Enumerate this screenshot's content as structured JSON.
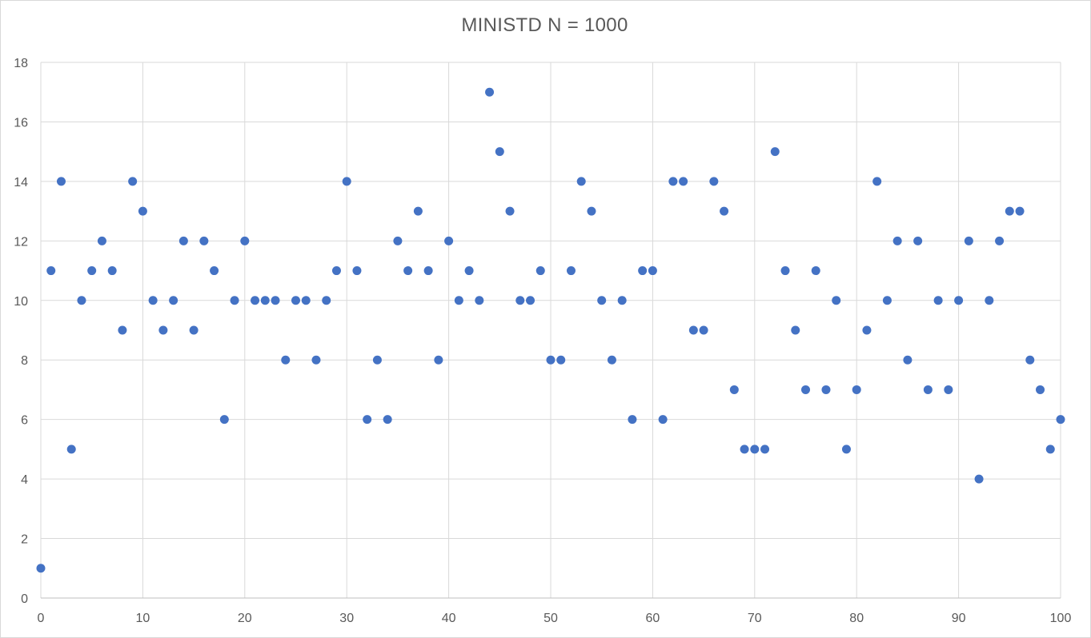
{
  "chart_data": {
    "type": "scatter",
    "title": "MINISTD N = 1000",
    "xlabel": "",
    "ylabel": "",
    "xlim": [
      0,
      100
    ],
    "ylim": [
      0,
      18
    ],
    "x_ticks": [
      0,
      10,
      20,
      30,
      40,
      50,
      60,
      70,
      80,
      90,
      100
    ],
    "y_ticks": [
      0,
      2,
      4,
      6,
      8,
      10,
      12,
      14,
      16,
      18
    ],
    "grid": true,
    "legend": "none",
    "marker_color": "#4472C4",
    "series": [
      {
        "x": [
          0,
          1,
          2,
          3,
          4,
          5,
          6,
          7,
          8,
          9,
          10,
          11,
          12,
          13,
          14,
          15,
          16,
          17,
          18,
          19,
          20,
          21,
          22,
          23,
          24,
          25,
          26,
          27,
          28,
          29,
          30,
          31,
          32,
          33,
          34,
          35,
          36,
          37,
          38,
          39,
          40,
          41,
          42,
          43,
          44,
          45,
          46,
          47,
          48,
          49,
          50,
          51,
          52,
          53,
          54,
          55,
          56,
          57,
          58,
          59,
          60,
          61,
          62,
          63,
          64,
          65,
          66,
          67,
          68,
          69,
          70,
          71,
          72,
          73,
          74,
          75,
          76,
          77,
          78,
          79,
          80,
          81,
          82,
          83,
          84,
          85,
          86,
          87,
          88,
          89,
          90,
          91,
          92,
          93,
          94,
          95,
          96,
          97,
          98,
          99,
          100
        ],
        "y": [
          1,
          11,
          14,
          5,
          10,
          11,
          12,
          11,
          9,
          14,
          13,
          10,
          9,
          10,
          12,
          9,
          12,
          11,
          6,
          10,
          12,
          10,
          10,
          10,
          8,
          10,
          10,
          8,
          10,
          11,
          14,
          11,
          6,
          8,
          6,
          12,
          11,
          13,
          11,
          8,
          12,
          10,
          11,
          10,
          17,
          15,
          13,
          10,
          10,
          11,
          8,
          8,
          11,
          14,
          13,
          10,
          8,
          10,
          6,
          11,
          11,
          6,
          14,
          14,
          9,
          9,
          14,
          13,
          7,
          5,
          5,
          5,
          15,
          11,
          9,
          7,
          11,
          7,
          10,
          5,
          7,
          9,
          14,
          10,
          12,
          8,
          12,
          7,
          10,
          7,
          10,
          12,
          4,
          10,
          12,
          13,
          13,
          8,
          7,
          5,
          6
        ]
      }
    ]
  }
}
